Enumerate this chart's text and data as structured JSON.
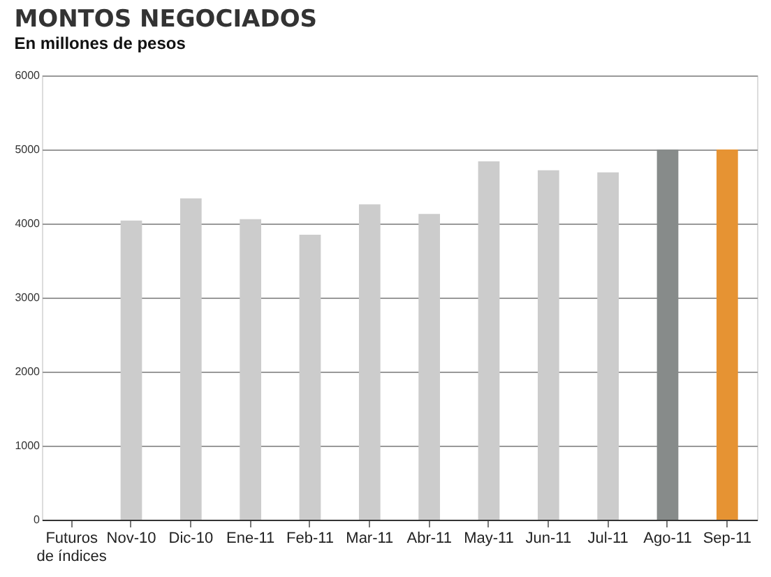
{
  "chart_data": {
    "type": "bar",
    "title": "MONTOS NEGOCIADOS",
    "subtitle": "En millones de pesos",
    "categories": [
      "Futuros de índices",
      "Nov-10",
      "Dic-10",
      "Ene-11",
      "Feb-11",
      "Mar-11",
      "Abr-11",
      "May-11",
      "Jun-11",
      "Jul-11",
      "Ago-11",
      "Sep-11"
    ],
    "values": [
      null,
      4040,
      4340,
      4060,
      3850,
      4260,
      4130,
      4840,
      4720,
      4690,
      5000,
      5000
    ],
    "colors": [
      "#cccccc",
      "#cccccc",
      "#cccccc",
      "#cccccc",
      "#cccccc",
      "#cccccc",
      "#cccccc",
      "#cccccc",
      "#cccccc",
      "#cccccc",
      "#878b8a",
      "#e69333"
    ],
    "ylim": [
      0,
      6000
    ],
    "yticks": [
      0,
      1000,
      2000,
      3000,
      4000,
      5000,
      6000
    ],
    "grid": "y",
    "legend": false
  }
}
